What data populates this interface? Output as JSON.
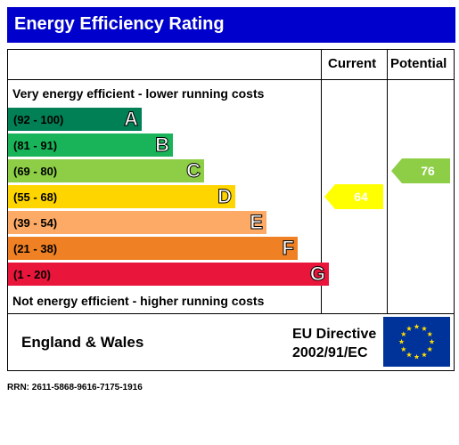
{
  "title": "Energy Efficiency Rating",
  "columns": {
    "current": "Current",
    "potential": "Potential"
  },
  "top_note": "Very energy efficient - lower running costs",
  "bottom_note": "Not energy efficient - higher running costs",
  "region": "England & Wales",
  "directive": {
    "line1": "EU Directive",
    "line2": "2002/91/EC"
  },
  "rrn": "RRN: 2611-5868-9616-7175-1916",
  "chart_data": {
    "type": "bar",
    "categories": [
      "A",
      "B",
      "C",
      "D",
      "E",
      "F",
      "G"
    ],
    "ranges": [
      "(92 - 100)",
      "(81 - 91)",
      "(69 - 80)",
      "(55 - 68)",
      "(39 - 54)",
      "(21 - 38)",
      "(1 - 20)"
    ],
    "colors": [
      "#008054",
      "#19b459",
      "#8dce46",
      "#ffd500",
      "#fcaa65",
      "#ef8023",
      "#e9153b"
    ],
    "current": {
      "value": 64,
      "band": "D",
      "color": "#ffff00"
    },
    "potential": {
      "value": 76,
      "band": "C",
      "color": "#8dce46"
    }
  }
}
